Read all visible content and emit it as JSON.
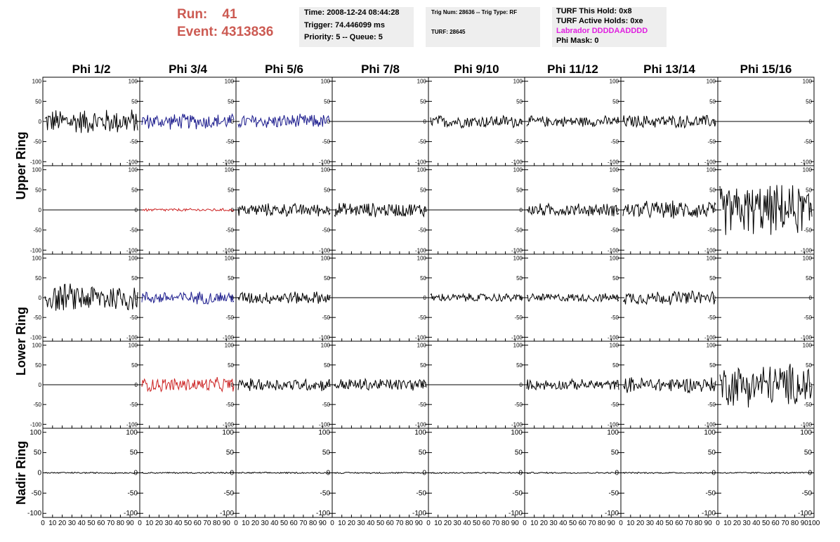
{
  "header": {
    "run_label": "Run:    41",
    "event_label": "Event: 4313836"
  },
  "info_panels": {
    "timing": {
      "time": "Time: 2008-12-24 08:44:28",
      "trigger": "Trigger: 74.446099 ms",
      "priority": "Priority: 5 -- Queue: 5"
    },
    "trigger": {
      "trig": "Trig Num: 28636 -- Trig Type: RF",
      "turf": "TURF: 28645"
    },
    "turf": {
      "hold": "TURF This Hold: 0x8",
      "active": "TURF Active Holds: 0xe",
      "labrador": "Labrador DDDDAADDDD",
      "phimask": "Phi Mask: 0"
    }
  },
  "colors": {
    "header_red": "#cc5a52",
    "panel_bg": "#eeeeee",
    "labrador_magenta": "#e020e0",
    "trace_black": "#000000",
    "trace_blue": "#1a1a8c",
    "trace_red": "#cc2222"
  },
  "chart_data": {
    "type": "line",
    "columns": [
      "Phi 1/2",
      "Phi 3/4",
      "Phi 5/6",
      "Phi 7/8",
      "Phi 9/10",
      "Phi 11/12",
      "Phi 13/14",
      "Phi 15/16"
    ],
    "ring_labels": [
      "Upper Ring",
      "Lower Ring",
      "Nadir Ring"
    ],
    "ylim": [
      -110,
      110
    ],
    "yticks": [
      -100,
      -50,
      0,
      50,
      100
    ],
    "xlim": [
      0,
      100
    ],
    "xticks": [
      0,
      10,
      20,
      30,
      40,
      50,
      60,
      70,
      80,
      90,
      100
    ],
    "ytick_labels": [
      "-100",
      "-50",
      "0",
      "50",
      "100"
    ],
    "xtick_labels": [
      "0",
      "10",
      "20",
      "30",
      "40",
      "50",
      "60",
      "70",
      "80",
      "90",
      "100"
    ],
    "rows": [
      {
        "ring": "Upper Ring",
        "cells": [
          {
            "amplitude": 35,
            "color": "black"
          },
          {
            "amplitude": 22,
            "color": "blue"
          },
          {
            "amplitude": 20,
            "color": "blue"
          },
          {
            "amplitude": 0,
            "color": "black"
          },
          {
            "amplitude": 18,
            "color": "black"
          },
          {
            "amplitude": 15,
            "color": "black"
          },
          {
            "amplitude": 18,
            "color": "black"
          },
          {
            "amplitude": 0,
            "color": "black"
          }
        ]
      },
      {
        "ring": "Upper Ring",
        "cells": [
          {
            "amplitude": 0,
            "color": "black"
          },
          {
            "amplitude": 4,
            "color": "red"
          },
          {
            "amplitude": 18,
            "color": "black"
          },
          {
            "amplitude": 20,
            "color": "black"
          },
          {
            "amplitude": 0,
            "color": "black"
          },
          {
            "amplitude": 18,
            "color": "black"
          },
          {
            "amplitude": 25,
            "color": "black"
          },
          {
            "amplitude": 70,
            "color": "black"
          }
        ]
      },
      {
        "ring": "Lower Ring",
        "cells": [
          {
            "amplitude": 40,
            "color": "black"
          },
          {
            "amplitude": 18,
            "color": "blue"
          },
          {
            "amplitude": 18,
            "color": "black"
          },
          {
            "amplitude": 0,
            "color": "black"
          },
          {
            "amplitude": 12,
            "color": "black"
          },
          {
            "amplitude": 12,
            "color": "black"
          },
          {
            "amplitude": 20,
            "color": "black"
          },
          {
            "amplitude": 0,
            "color": "black"
          }
        ]
      },
      {
        "ring": "Lower Ring",
        "cells": [
          {
            "amplitude": 0,
            "color": "black"
          },
          {
            "amplitude": 20,
            "color": "red"
          },
          {
            "amplitude": 18,
            "color": "black"
          },
          {
            "amplitude": 18,
            "color": "black"
          },
          {
            "amplitude": 0,
            "color": "black"
          },
          {
            "amplitude": 15,
            "color": "black"
          },
          {
            "amplitude": 22,
            "color": "black"
          },
          {
            "amplitude": 60,
            "color": "black"
          }
        ]
      },
      {
        "ring": "Nadir Ring",
        "cells": [
          {
            "amplitude": 2,
            "color": "black"
          },
          {
            "amplitude": 2,
            "color": "black"
          },
          {
            "amplitude": 2,
            "color": "black"
          },
          {
            "amplitude": 2,
            "color": "black"
          },
          {
            "amplitude": 2,
            "color": "black"
          },
          {
            "amplitude": 2,
            "color": "black"
          },
          {
            "amplitude": 2,
            "color": "black"
          },
          {
            "amplitude": 2,
            "color": "black"
          }
        ]
      }
    ]
  }
}
